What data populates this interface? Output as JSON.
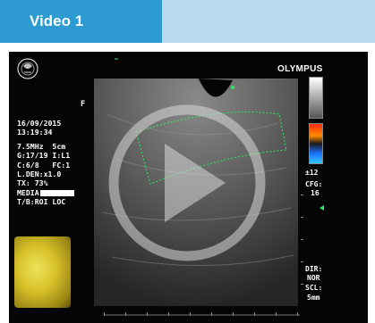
{
  "header": {
    "title": "Video 1"
  },
  "brand": "OLYMPUS",
  "overlay_left": {
    "marker": "F",
    "date": "16/09/2015",
    "time": "13:19:34",
    "lines": [
      "7.5MHz  5cm",
      "G:17/19 I:L1",
      "C:6/8   FC:1",
      "L.DEN:x1.0",
      "TX: 73%"
    ],
    "media_label": "MEDIA",
    "tb_label": "T/B:ROI LOC"
  },
  "overlay_right": {
    "scale_value": "±12",
    "cfg_label": "CFG:",
    "cfg_value": "16",
    "dir_label": "DIR:",
    "dir_value": "NOR",
    "scl_label": "SCL:",
    "scl_value": "5mm"
  },
  "colors": {
    "header_tab": "#2d9ad2",
    "header_bar": "#b9dcef",
    "roi_outline": "#2ee86a"
  },
  "icons": {
    "play": "play-icon",
    "seal": "emblem-icon"
  }
}
